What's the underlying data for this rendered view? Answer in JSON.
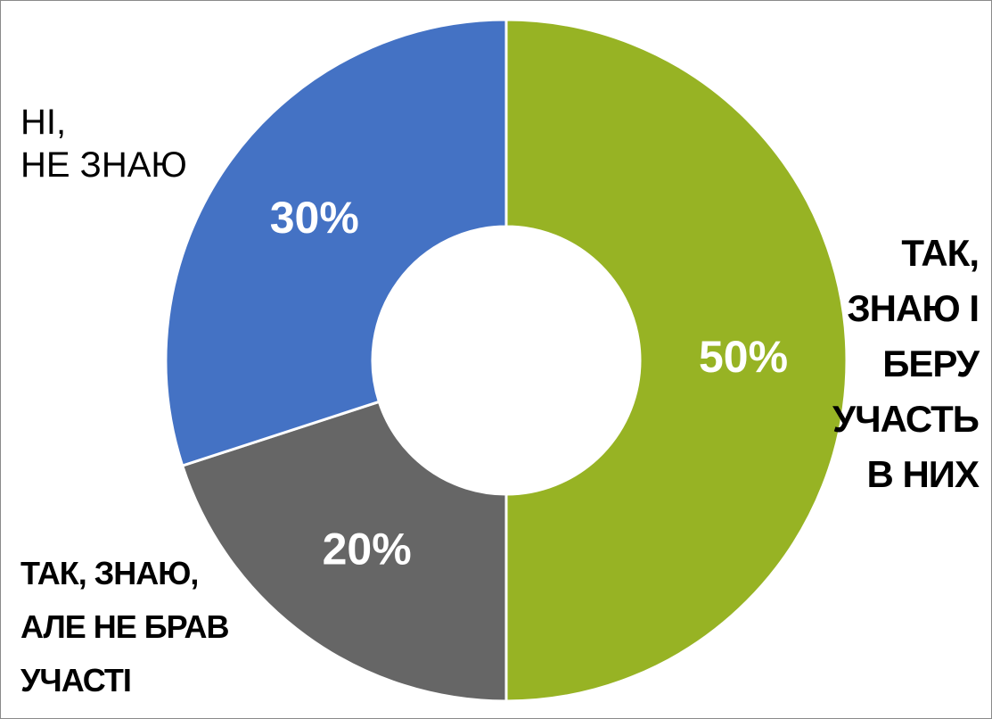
{
  "chart_data": {
    "type": "pie",
    "donut": true,
    "categories": [
      "ТАК,\nЗНАЮ І\nБЕРУ\nУЧАСТЬ\nВ НИХ",
      "ТАК, ЗНАЮ,\nАЛЕ НЕ БРАВ\nУЧАСТІ",
      "НІ,\nНЕ ЗНАЮ"
    ],
    "values": [
      50,
      20,
      30
    ],
    "value_labels": [
      "50%",
      "20%",
      "30%"
    ],
    "colors": [
      "#97b324",
      "#666666",
      "#4472c4"
    ]
  }
}
